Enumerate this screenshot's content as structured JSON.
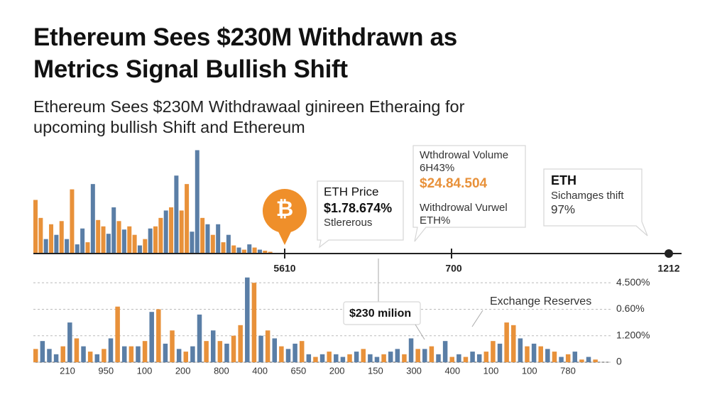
{
  "header": {
    "title": "Ethereum Sees $230M Withdrawn as Metrics Signal Bullish Shift",
    "subtitle": "Ethereum Sees $230M Withdrawaal ginireen Etheraing for upcoming bullish Shift and Ethereum"
  },
  "badge": "₿",
  "callouts": [
    {
      "title": "ETH Price",
      "value": "$1.78.674%",
      "note": "Stlererous"
    },
    {
      "title": "Wthdrowal Volume",
      "sub": "6H43%",
      "value": "$24.84.504",
      "note": "Withdrowal Vurwel",
      "note2": "ETH%"
    },
    {
      "title": "ETH",
      "note": "Sichamges thift",
      "value": "97%"
    }
  ],
  "chart_data": [
    {
      "type": "bar",
      "ylim": [
        0,
        100
      ],
      "timeline_labels": [
        "5610",
        "700",
        "1212"
      ],
      "values": [
        50,
        33,
        13,
        27,
        17,
        30,
        13,
        60,
        8,
        23,
        10,
        65,
        31,
        25,
        18,
        43,
        30,
        22,
        25,
        17,
        7,
        13,
        23,
        25,
        33,
        40,
        43,
        73,
        40,
        65,
        20,
        97,
        33,
        27,
        17,
        27,
        10,
        17,
        7,
        5,
        3,
        8,
        5,
        3,
        2,
        1
      ],
      "colors": [
        "#e8913a",
        "#e8913a",
        "#5a7ea6",
        "#e8913a",
        "#5a7ea6",
        "#e8913a",
        "#5a7ea6",
        "#e8913a",
        "#5a7ea6",
        "#5a7ea6",
        "#e8913a",
        "#5a7ea6",
        "#e8913a",
        "#e8913a",
        "#5a7ea6",
        "#5a7ea6",
        "#e8913a",
        "#5a7ea6",
        "#e8913a",
        "#e8913a",
        "#5a7ea6",
        "#e8913a",
        "#5a7ea6",
        "#e8913a",
        "#e8913a",
        "#5a7ea6",
        "#e8913a",
        "#5a7ea6",
        "#e8913a",
        "#e8913a",
        "#5a7ea6",
        "#5a7ea6",
        "#e8913a",
        "#5a7ea6",
        "#e8913a",
        "#5a7ea6",
        "#e8913a",
        "#5a7ea6",
        "#e8913a",
        "#5a7ea6",
        "#e8913a",
        "#5a7ea6",
        "#e8913a",
        "#5a7ea6",
        "#e8913a",
        "#e8913a"
      ]
    },
    {
      "type": "bar",
      "ylim": [
        0,
        3.3
      ],
      "grid": true,
      "yticks": [
        {
          "value": 3,
          "label": "4.500%"
        },
        {
          "value": 2,
          "label": "0.60%"
        },
        {
          "value": 1,
          "label": "1.200%"
        },
        0
      ],
      "x_labels": [
        "210",
        "950",
        "100",
        "200",
        "800",
        "400",
        "650",
        "200",
        "150",
        "300",
        "400",
        "100",
        "100",
        "780"
      ],
      "annotations": [
        "$230 milion",
        "Exchange Reserves"
      ],
      "values": [
        0.5,
        0.8,
        0.5,
        0.3,
        0.6,
        1.5,
        0.9,
        0.6,
        0.4,
        0.3,
        0.5,
        0.9,
        2.1,
        0.6,
        0.6,
        0.6,
        0.8,
        1.9,
        2.0,
        0.7,
        1.2,
        0.5,
        0.4,
        0.6,
        1.8,
        0.8,
        1.2,
        0.8,
        0.7,
        1.0,
        1.4,
        3.2,
        3.0,
        1.0,
        1.2,
        0.9,
        0.6,
        0.5,
        0.7,
        0.8,
        0.3,
        0.2,
        0.3,
        0.4,
        0.3,
        0.2,
        0.3,
        0.4,
        0.5,
        0.3,
        0.2,
        0.3,
        0.4,
        0.5,
        0.3,
        0.9,
        0.5,
        0.5,
        0.6,
        0.3,
        0.8,
        0.2,
        0.3,
        0.2,
        0.4,
        0.3,
        0.4,
        0.8,
        0.7,
        1.5,
        1.4,
        0.9,
        0.6,
        0.7,
        0.6,
        0.5,
        0.4,
        0.2,
        0.3,
        0.4,
        0.1,
        0.2,
        0.1
      ],
      "colors": [
        "#e8913a",
        "#5a7ea6",
        "#5a7ea6",
        "#5a7ea6",
        "#e8913a",
        "#5a7ea6",
        "#e8913a",
        "#5a7ea6",
        "#e8913a",
        "#5a7ea6",
        "#e8913a",
        "#5a7ea6",
        "#e8913a",
        "#5a7ea6",
        "#e8913a",
        "#5a7ea6",
        "#e8913a",
        "#5a7ea6",
        "#e8913a",
        "#5a7ea6",
        "#e8913a",
        "#5a7ea6",
        "#e8913a",
        "#5a7ea6",
        "#5a7ea6",
        "#e8913a",
        "#5a7ea6",
        "#e8913a",
        "#5a7ea6",
        "#e8913a",
        "#e8913a",
        "#5a7ea6",
        "#e8913a",
        "#5a7ea6",
        "#e8913a",
        "#5a7ea6",
        "#e8913a",
        "#5a7ea6",
        "#5a7ea6",
        "#e8913a",
        "#5a7ea6",
        "#e8913a",
        "#5a7ea6",
        "#e8913a",
        "#5a7ea6",
        "#5a7ea6",
        "#e8913a",
        "#5a7ea6",
        "#e8913a",
        "#5a7ea6",
        "#5a7ea6",
        "#e8913a",
        "#5a7ea6",
        "#5a7ea6",
        "#e8913a",
        "#5a7ea6",
        "#e8913a",
        "#5a7ea6",
        "#e8913a",
        "#5a7ea6",
        "#5a7ea6",
        "#e8913a",
        "#5a7ea6",
        "#e8913a",
        "#5a7ea6",
        "#5a7ea6",
        "#e8913a",
        "#e8913a",
        "#5a7ea6",
        "#e8913a",
        "#e8913a",
        "#5a7ea6",
        "#e8913a",
        "#5a7ea6",
        "#e8913a",
        "#5a7ea6",
        "#e8913a",
        "#5a7ea6",
        "#e8913a",
        "#5a7ea6",
        "#e8913a",
        "#5a7ea6",
        "#e8913a"
      ]
    }
  ]
}
